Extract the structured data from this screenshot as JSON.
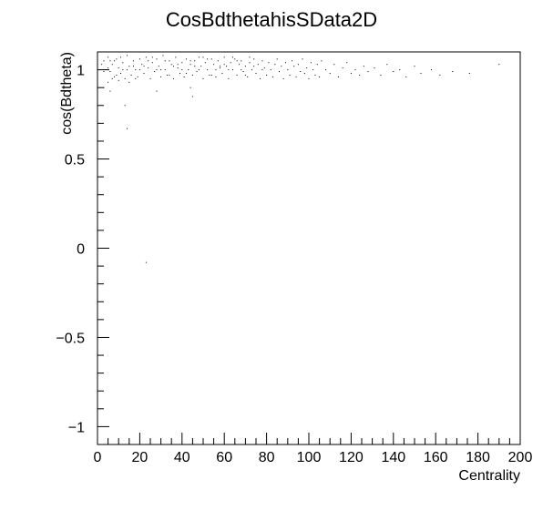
{
  "chart_data": {
    "type": "scatter",
    "title": "CosBdthetahisSData2D",
    "xlabel": "Centrality",
    "ylabel": "cos(Bdtheta)",
    "xlim": [
      0,
      200
    ],
    "ylim": [
      -1.1,
      1.1
    ],
    "x_ticks": [
      0,
      20,
      40,
      60,
      80,
      100,
      120,
      140,
      160,
      180,
      200
    ],
    "y_ticks": [
      -1,
      -0.5,
      0,
      0.5,
      1
    ],
    "x_tick_labels": [
      "0",
      "20",
      "40",
      "60",
      "80",
      "100",
      "120",
      "140",
      "160",
      "180",
      "200"
    ],
    "y_tick_labels": [
      "−1",
      "−0.5",
      "0",
      "0.5",
      "1"
    ],
    "grid": false,
    "legend": "none",
    "marker_color": "#000000",
    "points": [
      [
        3,
        1.05
      ],
      [
        4,
        1.0
      ],
      [
        5,
        1.07
      ],
      [
        6,
        0.99
      ],
      [
        7,
        1.03
      ],
      [
        8,
        0.96
      ],
      [
        9,
        1.06
      ],
      [
        10,
        1.01
      ],
      [
        11,
        0.98
      ],
      [
        12,
        1.04
      ],
      [
        13,
        0.95
      ],
      [
        14,
        1.08
      ],
      [
        15,
        1.02
      ],
      [
        16,
        0.97
      ],
      [
        17,
        1.05
      ],
      [
        18,
        1.0
      ],
      [
        19,
        0.96
      ],
      [
        20,
        1.06
      ],
      [
        21,
        1.03
      ],
      [
        22,
        0.98
      ],
      [
        23,
        1.07
      ],
      [
        24,
        1.01
      ],
      [
        25,
        0.95
      ],
      [
        26,
        1.04
      ],
      [
        27,
        0.99
      ],
      [
        28,
        1.06
      ],
      [
        29,
        1.02
      ],
      [
        30,
        0.96
      ],
      [
        31,
        1.08
      ],
      [
        32,
        1.0
      ],
      [
        33,
        0.97
      ],
      [
        34,
        1.05
      ],
      [
        35,
        1.03
      ],
      [
        36,
        0.95
      ],
      [
        37,
        1.07
      ],
      [
        38,
        1.01
      ],
      [
        39,
        0.98
      ],
      [
        40,
        1.04
      ],
      [
        41,
        0.96
      ],
      [
        42,
        1.06
      ],
      [
        43,
        1.0
      ],
      [
        44,
        1.03
      ],
      [
        45,
        0.97
      ],
      [
        46,
        1.05
      ],
      [
        47,
        0.99
      ],
      [
        48,
        1.07
      ],
      [
        49,
        1.02
      ],
      [
        50,
        0.95
      ],
      [
        51,
        1.04
      ],
      [
        52,
        1.0
      ],
      [
        53,
        0.97
      ],
      [
        54,
        1.06
      ],
      [
        55,
        1.03
      ],
      [
        56,
        0.96
      ],
      [
        57,
        1.05
      ],
      [
        58,
        1.01
      ],
      [
        59,
        0.98
      ],
      [
        60,
        1.07
      ],
      [
        61,
        1.02
      ],
      [
        62,
        0.95
      ],
      [
        63,
        1.04
      ],
      [
        64,
        1.0
      ],
      [
        65,
        1.06
      ],
      [
        66,
        0.97
      ],
      [
        67,
        1.03
      ],
      [
        68,
        1.05
      ],
      [
        69,
        0.99
      ],
      [
        70,
        1.02
      ],
      [
        71,
        0.96
      ],
      [
        72,
        1.04
      ],
      [
        73,
        1.0
      ],
      [
        74,
        1.06
      ],
      [
        75,
        0.98
      ],
      [
        76,
        1.03
      ],
      [
        77,
        0.95
      ],
      [
        78,
        1.05
      ],
      [
        79,
        1.01
      ],
      [
        80,
        0.97
      ],
      [
        81,
        1.04
      ],
      [
        82,
        1.0
      ],
      [
        83,
        0.96
      ],
      [
        84,
        1.03
      ],
      [
        85,
        1.06
      ],
      [
        86,
        0.99
      ],
      [
        87,
        1.02
      ],
      [
        88,
        0.95
      ],
      [
        89,
        1.04
      ],
      [
        90,
        1.0
      ],
      [
        91,
        0.97
      ],
      [
        92,
        1.05
      ],
      [
        93,
        1.02
      ],
      [
        94,
        0.96
      ],
      [
        95,
        1.03
      ],
      [
        96,
        0.99
      ],
      [
        97,
        1.06
      ],
      [
        98,
        0.98
      ],
      [
        99,
        1.01
      ],
      [
        100,
        0.95
      ],
      [
        101,
        1.04
      ],
      [
        102,
        1.0
      ],
      [
        103,
        0.97
      ],
      [
        104,
        1.03
      ],
      [
        105,
        0.96
      ],
      [
        106,
        1.05
      ],
      [
        108,
        1.0
      ],
      [
        110,
        0.98
      ],
      [
        112,
        1.03
      ],
      [
        114,
        0.96
      ],
      [
        116,
        1.01
      ],
      [
        118,
        1.04
      ],
      [
        120,
        0.98
      ],
      [
        122,
        1.0
      ],
      [
        124,
        0.97
      ],
      [
        126,
        1.02
      ],
      [
        128,
        0.99
      ],
      [
        131,
        1.01
      ],
      [
        134,
        0.97
      ],
      [
        137,
        1.03
      ],
      [
        140,
        0.99
      ],
      [
        143,
        1.0
      ],
      [
        146,
        0.96
      ],
      [
        150,
        1.02
      ],
      [
        153,
        0.98
      ],
      [
        158,
        1.0
      ],
      [
        162,
        0.97
      ],
      [
        168,
        0.99
      ],
      [
        176,
        0.98
      ],
      [
        190,
        1.03
      ],
      [
        2,
        1.03
      ],
      [
        5,
        1.01
      ],
      [
        8,
        1.05
      ],
      [
        11,
        1.07
      ],
      [
        14,
        1.0
      ],
      [
        17,
        1.02
      ],
      [
        20,
        1.0
      ],
      [
        24,
        1.05
      ],
      [
        28,
        1.0
      ],
      [
        32,
        1.05
      ],
      [
        36,
        1.02
      ],
      [
        40,
        1.0
      ],
      [
        44,
        1.05
      ],
      [
        48,
        1.0
      ],
      [
        52,
        1.06
      ],
      [
        56,
        1.0
      ],
      [
        60,
        1.03
      ],
      [
        64,
        1.07
      ],
      [
        68,
        1.0
      ],
      [
        72,
        1.07
      ],
      [
        3,
        0.99
      ],
      [
        6,
        1.05
      ],
      [
        9,
        0.97
      ],
      [
        12,
        1.0
      ],
      [
        18,
        0.95
      ],
      [
        22,
        1.02
      ],
      [
        26,
        1.07
      ],
      [
        30,
        1.0
      ],
      [
        34,
        0.97
      ],
      [
        38,
        1.03
      ],
      [
        42,
        0.98
      ],
      [
        46,
        1.02
      ],
      [
        50,
        1.07
      ],
      [
        54,
        0.97
      ],
      [
        58,
        1.02
      ],
      [
        62,
        1.0
      ],
      [
        66,
        1.05
      ],
      [
        70,
        0.97
      ],
      [
        74,
        1.02
      ],
      [
        78,
        1.0
      ],
      [
        5,
        0.93
      ],
      [
        7,
        0.95
      ],
      [
        10,
        0.94
      ],
      [
        15,
        0.93
      ],
      [
        3,
        0.9
      ],
      [
        6,
        0.88
      ],
      [
        44,
        0.9
      ],
      [
        45,
        0.85
      ],
      [
        13,
        0.8
      ],
      [
        14,
        0.67
      ],
      [
        28,
        0.88
      ],
      [
        23,
        -0.08
      ]
    ]
  }
}
